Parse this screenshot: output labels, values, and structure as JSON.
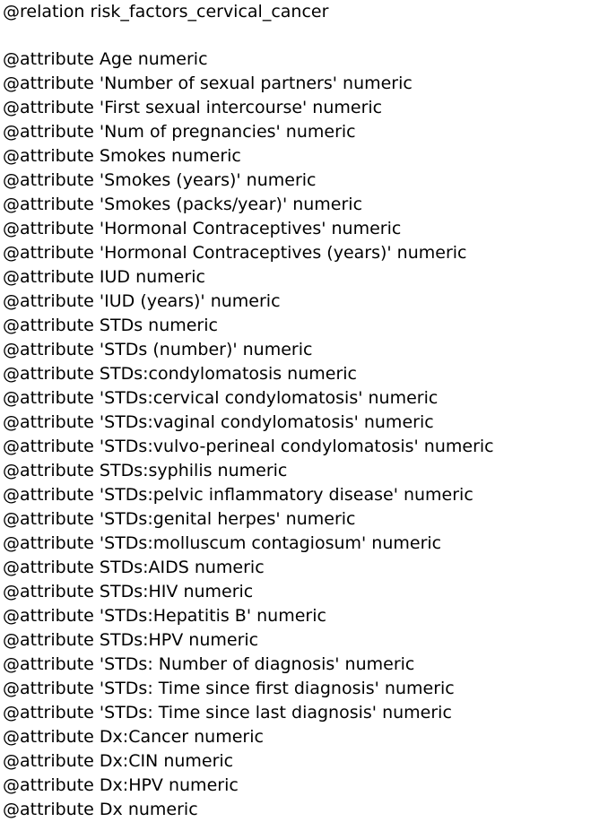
{
  "document": {
    "relation_line": "@relation risk_factors_cervical_cancer",
    "attributes": [
      "@attribute Age numeric",
      "@attribute 'Number of sexual partners' numeric",
      "@attribute 'First sexual intercourse' numeric",
      "@attribute 'Num of pregnancies' numeric",
      "@attribute Smokes numeric",
      "@attribute 'Smokes (years)' numeric",
      "@attribute 'Smokes (packs/year)' numeric",
      "@attribute 'Hormonal Contraceptives' numeric",
      "@attribute 'Hormonal Contraceptives (years)' numeric",
      "@attribute IUD numeric",
      "@attribute 'IUD (years)' numeric",
      "@attribute STDs numeric",
      "@attribute 'STDs (number)' numeric",
      "@attribute STDs:condylomatosis numeric",
      "@attribute 'STDs:cervical condylomatosis' numeric",
      "@attribute 'STDs:vaginal condylomatosis' numeric",
      "@attribute 'STDs:vulvo-perineal condylomatosis' numeric",
      "@attribute STDs:syphilis numeric",
      "@attribute 'STDs:pelvic inflammatory disease' numeric",
      "@attribute 'STDs:genital herpes' numeric",
      "@attribute 'STDs:molluscum contagiosum' numeric",
      "@attribute STDs:AIDS numeric",
      "@attribute STDs:HIV numeric",
      "@attribute 'STDs:Hepatitis B' numeric",
      "@attribute STDs:HPV numeric",
      "@attribute 'STDs: Number of diagnosis' numeric",
      "@attribute 'STDs: Time since first diagnosis' numeric",
      "@attribute 'STDs: Time since last diagnosis' numeric",
      "@attribute Dx:Cancer numeric",
      "@attribute Dx:CIN numeric",
      "@attribute Dx:HPV numeric",
      "@attribute Dx numeric"
    ]
  }
}
